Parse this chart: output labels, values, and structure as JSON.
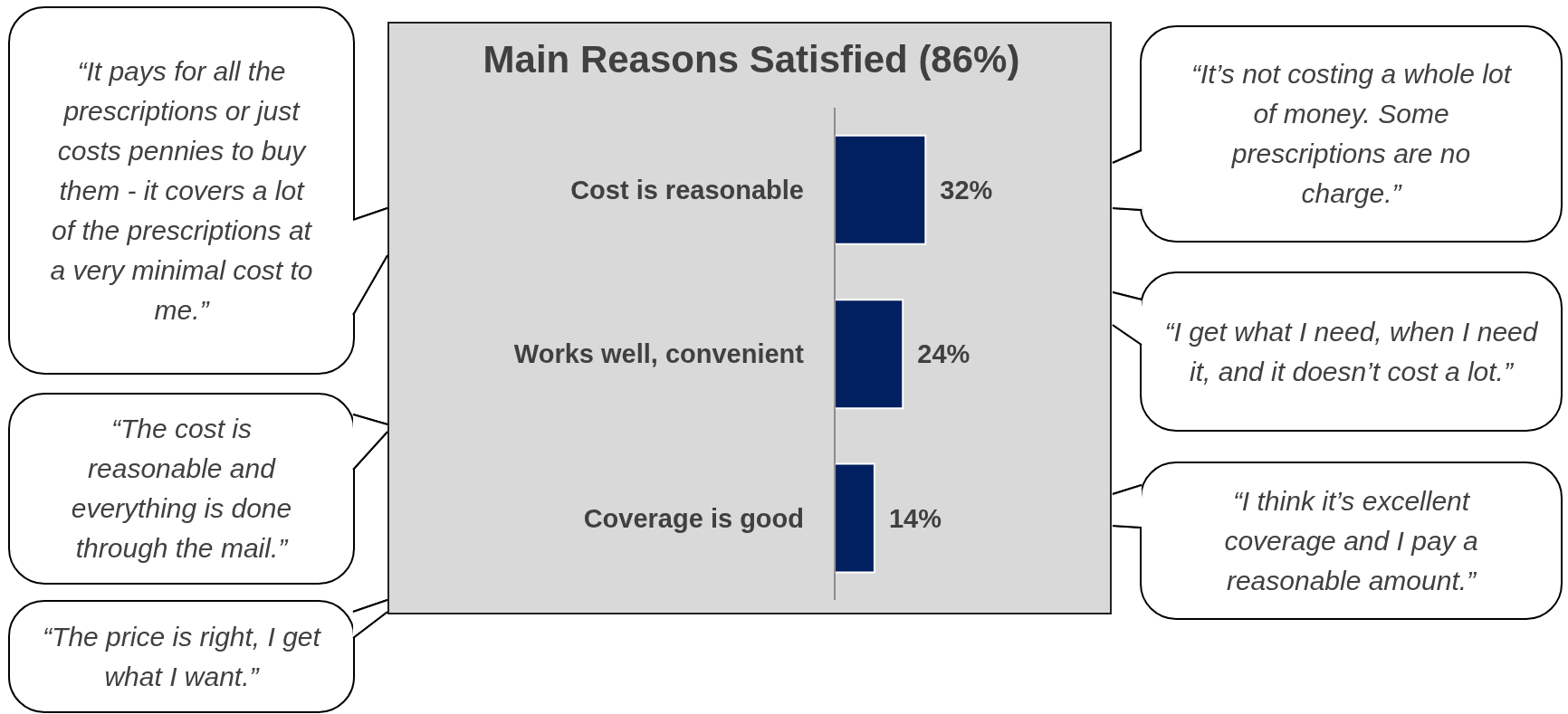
{
  "chart_data": {
    "type": "bar",
    "orientation": "horizontal",
    "title": "Main Reasons Satisfied (86%)",
    "categories": [
      "Cost is reasonable",
      "Works well, convenient",
      "Coverage is good"
    ],
    "values": [
      32,
      24,
      14
    ],
    "color": "#002060",
    "value_labels": [
      "32%",
      "24%",
      "14%"
    ],
    "legend": false,
    "grid": false,
    "annotations": [
      "“It pays for all the prescriptions or just costs pennies to buy them - it covers a lot of the prescriptions at a very minimal cost to me.”",
      "“The cost is reasonable and everything is done through the mail.”",
      "“The price is right, I get what I want.”",
      "“It’s not costing a whole lot of money.  Some prescriptions are no charge.”",
      "“I get what I need, when I need it, and it doesn’t cost a lot.”",
      "“I think it’s excellent coverage and I pay a reasonable amount.”"
    ]
  }
}
